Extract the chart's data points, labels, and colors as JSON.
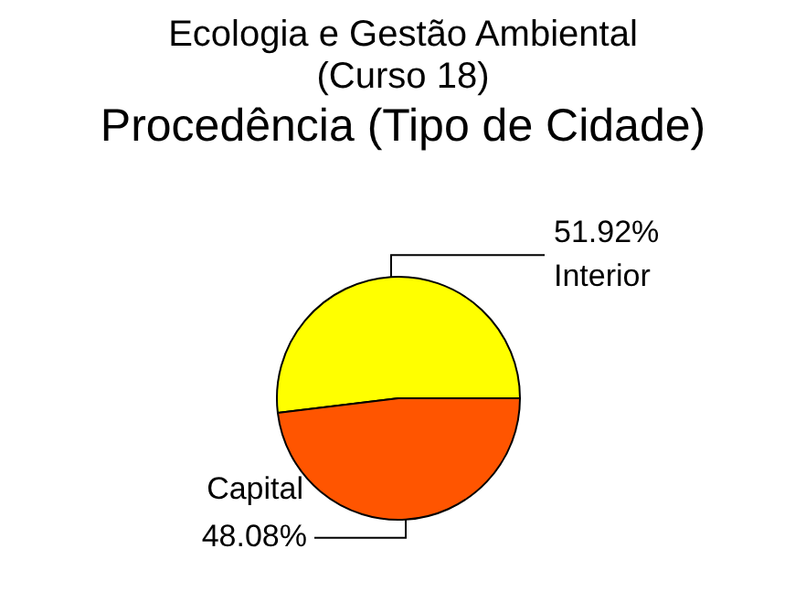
{
  "chart_data": {
    "type": "pie",
    "title": "Ecologia e Gestão Ambiental\n(Curso 18)",
    "subtitle": "Procedência (Tipo de Cidade)",
    "categories": [
      "Interior",
      "Capital"
    ],
    "values": [
      51.92,
      48.08
    ],
    "value_labels": [
      "51.92%",
      "48.08%"
    ],
    "colors": [
      "#ffff00",
      "#ff5500"
    ],
    "legend": false
  }
}
